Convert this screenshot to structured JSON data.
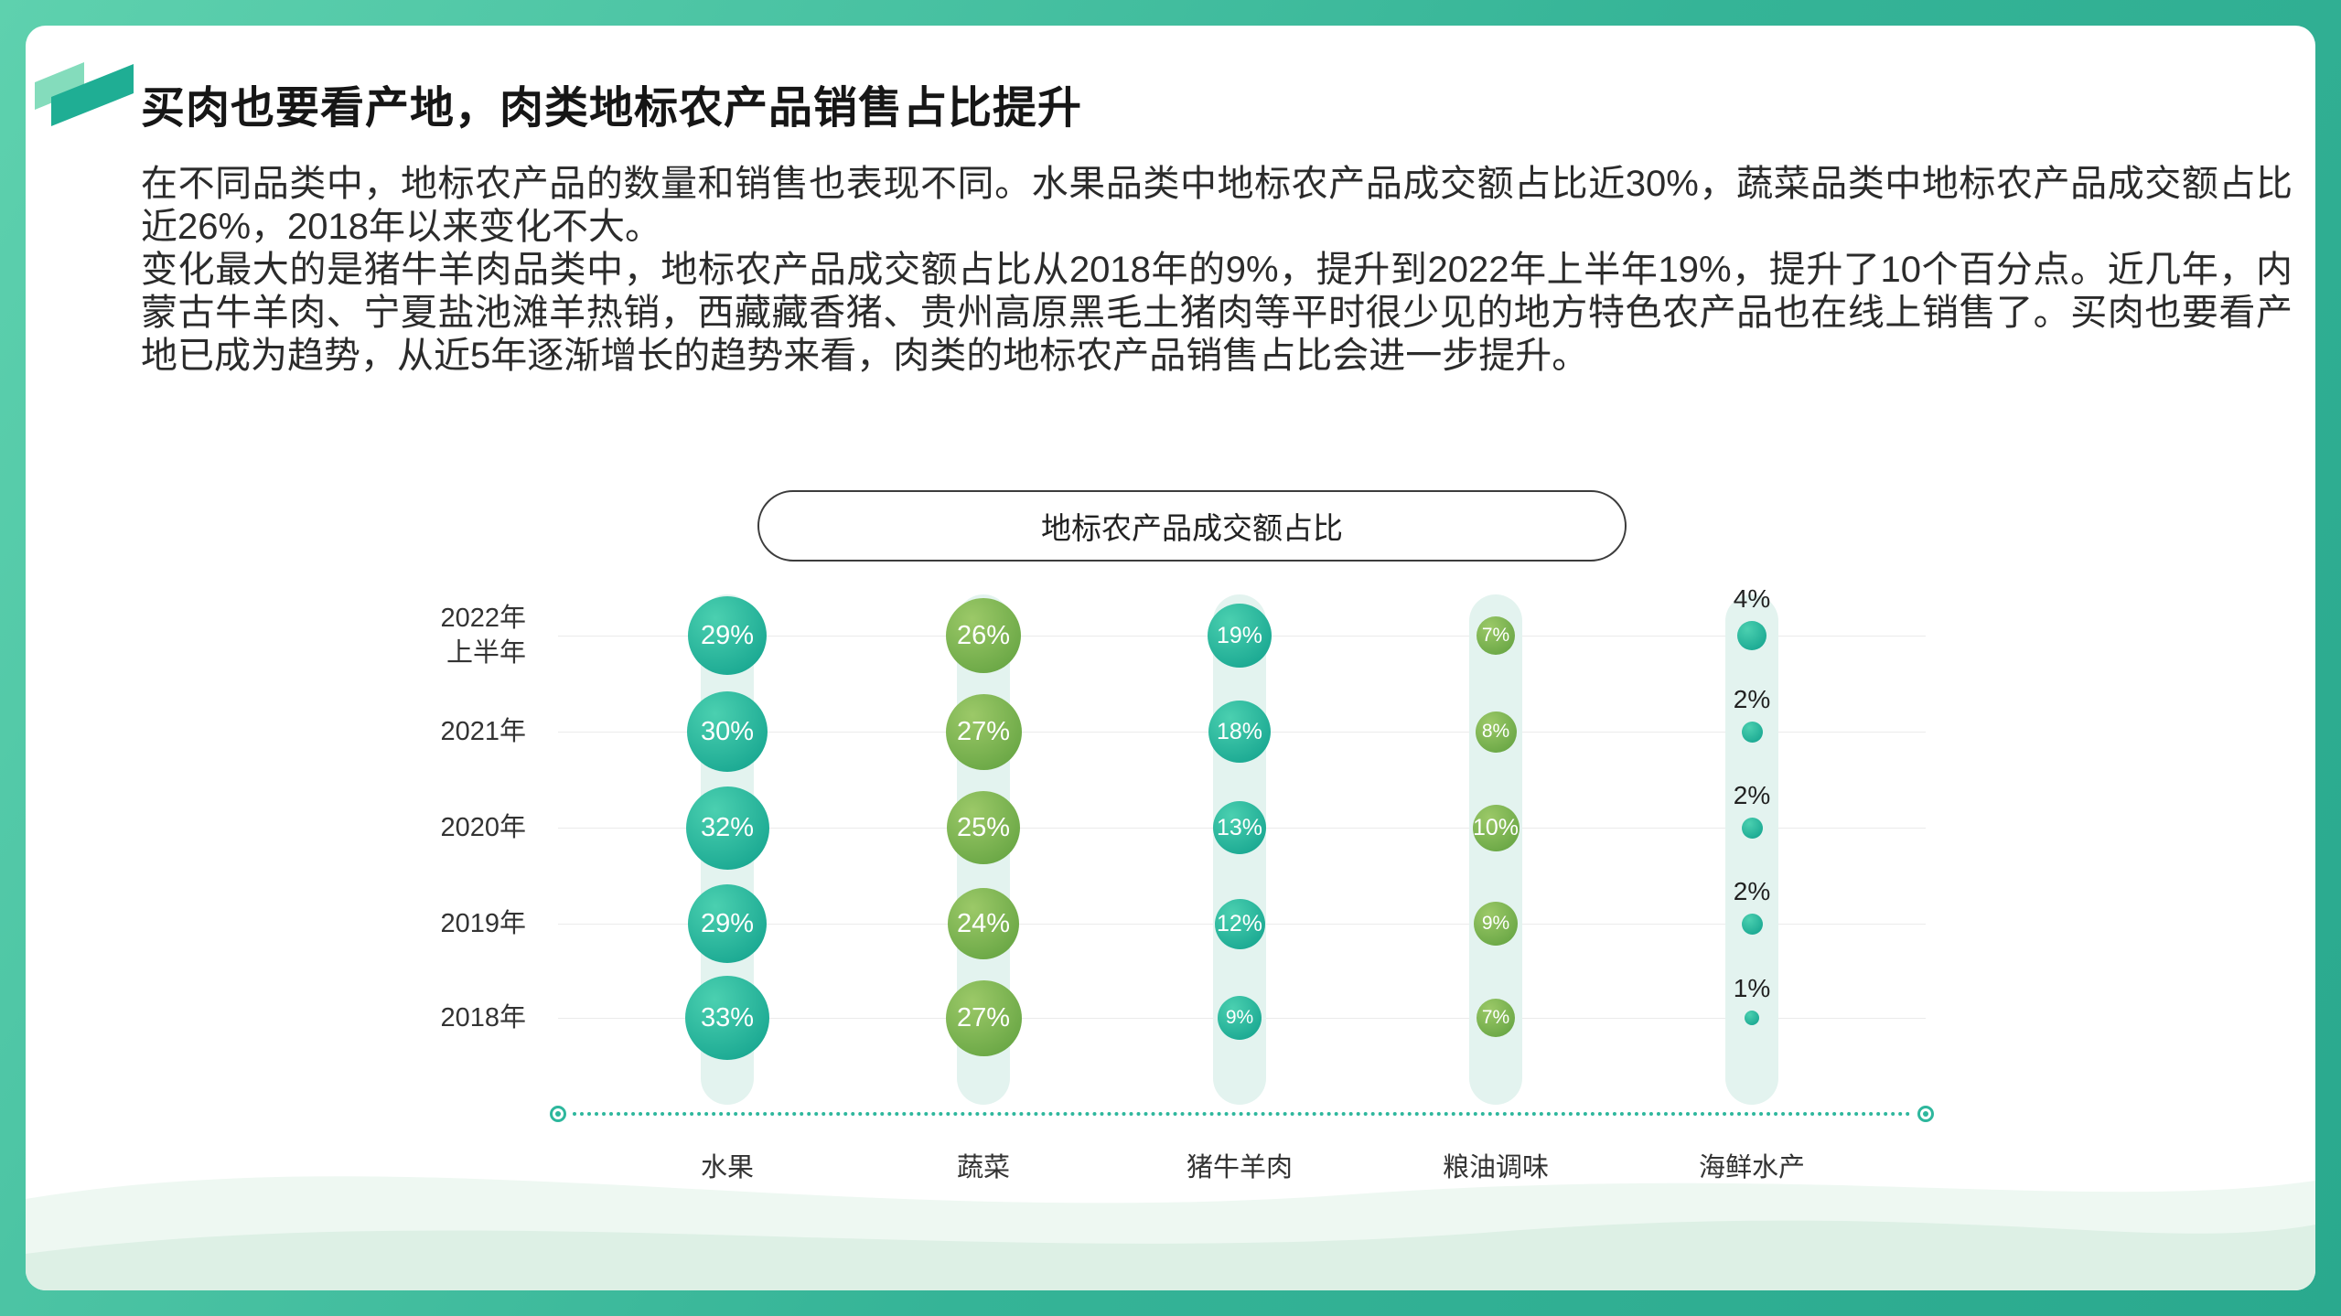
{
  "slide": {
    "title": "买肉也要看产地，肉类地标农产品销售占比提升",
    "paragraphs": {
      "p1": "在不同品类中，地标农产品的数量和销售也表现不同。水果品类中地标农产品成交额占比近30%，蔬菜品类中地标农产品成交额占比近26%，2018年以来变化不大。",
      "p2": "变化最大的是猪牛羊肉品类中，地标农产品成交额占比从2018年的9%，提升到2022年上半年19%，提升了10个百分点。近几年，内蒙古牛羊肉、宁夏盐池滩羊热销，西藏藏香猪、贵州高原黑毛土猪肉等平时很少见的地方特色农产品也在线上销售了。买肉也要看产地已成为趋势，从近5年逐渐增长的趋势来看，肉类的地标农产品销售占比会进一步提升。"
    }
  },
  "colors": {
    "frame_light": "#5ed1ae",
    "frame_dark": "#2aa98e",
    "band": "#e3f3ef",
    "grid_line": "#ebebeb",
    "axis": "#2eb79d",
    "label_text": "#333333",
    "bubble_text": "#ffffff",
    "palette": {
      "teal": {
        "light": "#4bd0b0",
        "dark": "#0f9f8b"
      },
      "green": {
        "light": "#9cc968",
        "dark": "#5e9f3d"
      }
    }
  },
  "chart_data": {
    "type": "bubble",
    "title": "地标农产品成交额占比",
    "unit": "%",
    "grid": "horizontal-rows",
    "legend": "none",
    "row_labels": [
      "2022年\n上半年",
      "2021年",
      "2020年",
      "2019年",
      "2018年"
    ],
    "categories": [
      "水果",
      "蔬菜",
      "猪牛羊肉",
      "粮油调味",
      "海鲜水产"
    ],
    "series": [
      {
        "name": "水果",
        "palette": "teal",
        "label_position": "inside",
        "values": [
          29,
          30,
          32,
          29,
          33
        ]
      },
      {
        "name": "蔬菜",
        "palette": "green",
        "label_position": "inside",
        "values": [
          26,
          27,
          25,
          24,
          27
        ]
      },
      {
        "name": "猪牛羊肉",
        "palette": "teal",
        "label_position": "inside",
        "values": [
          19,
          18,
          13,
          12,
          9
        ]
      },
      {
        "name": "粮油调味",
        "palette": "green",
        "label_position": "inside",
        "values": [
          7,
          8,
          10,
          9,
          7
        ]
      },
      {
        "name": "海鲜水产",
        "palette": "teal",
        "label_position": "above",
        "values": [
          4,
          2,
          2,
          2,
          1
        ]
      }
    ]
  }
}
